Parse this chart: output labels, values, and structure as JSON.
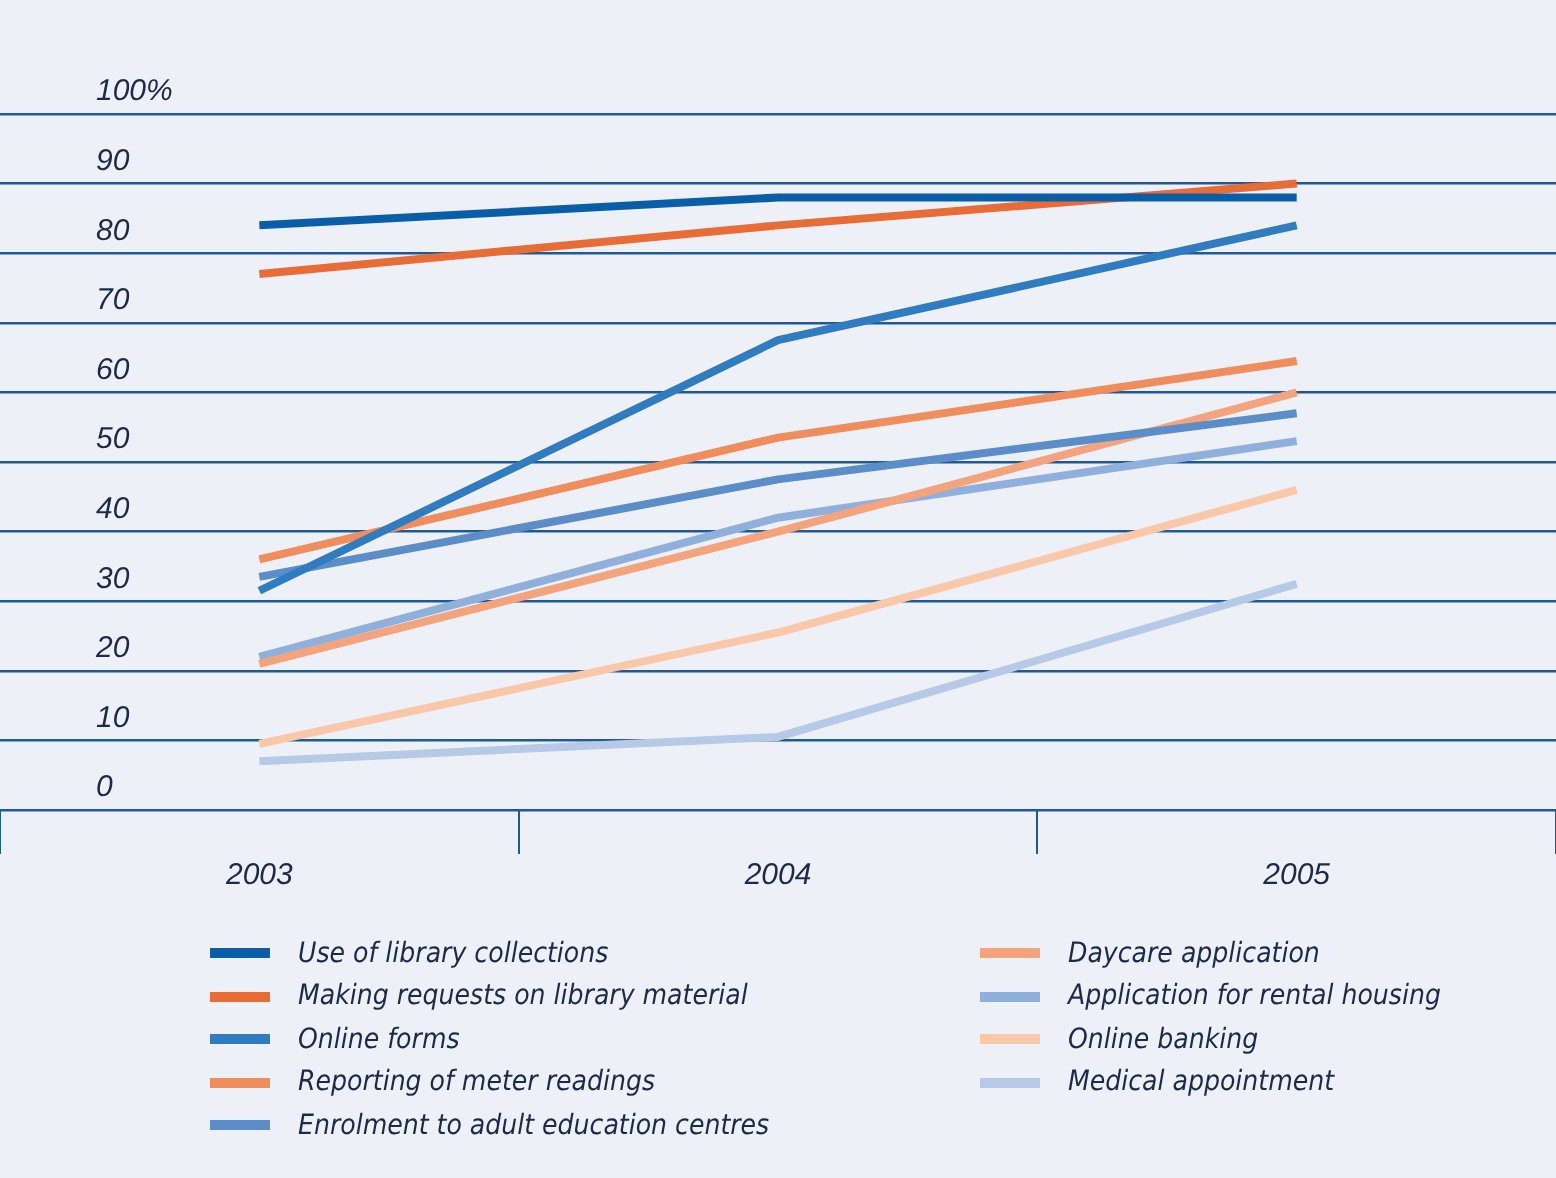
{
  "chart_data": {
    "type": "line",
    "categories": [
      "2003",
      "2004",
      "2005"
    ],
    "series": [
      {
        "name": "Use of library collections",
        "color": "#0a5ea8",
        "values": [
          84,
          88,
          88
        ]
      },
      {
        "name": "Making requests on library material",
        "color": "#e86c36",
        "values": [
          77,
          84,
          90
        ]
      },
      {
        "name": "Online forms",
        "color": "#2f7cc0",
        "values": [
          31.5,
          67.5,
          84
        ]
      },
      {
        "name": "Reporting of meter readings",
        "color": "#ef8e5c",
        "values": [
          36,
          53.5,
          64.5
        ]
      },
      {
        "name": "Enrolment to adult education centres",
        "color": "#5b8ec8",
        "values": [
          33.5,
          47.5,
          57
        ]
      },
      {
        "name": "Daycare application",
        "color": "#f3a47c",
        "values": [
          21,
          40,
          60
        ]
      },
      {
        "name": "Application for rental housing",
        "color": "#8fb0dc",
        "values": [
          22,
          42,
          53
        ]
      },
      {
        "name": "Online banking",
        "color": "#f8c8a8",
        "values": [
          9.5,
          25.5,
          46
        ]
      },
      {
        "name": "Medical appointment",
        "color": "#b6c9e6",
        "values": [
          7,
          10.5,
          32.5
        ]
      }
    ],
    "ylim": [
      0,
      100
    ],
    "yticks": [
      0,
      10,
      20,
      30,
      40,
      50,
      60,
      70,
      80,
      90,
      {
        "value": 100,
        "label": "100%"
      }
    ],
    "grid": "y",
    "legend": "bottom",
    "marker": "none",
    "line_style": "solid"
  }
}
